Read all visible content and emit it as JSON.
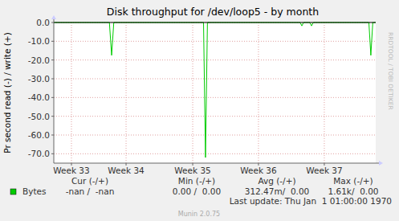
{
  "chart_data": {
    "type": "line",
    "title": "Disk throughput for /dev/loop5 - by month",
    "y_label": "Pr second read (-) / write (+)",
    "side_text": "RRDTOOL / TOBI OETIKER",
    "x": [
      0,
      5.7,
      5.93,
      6.15,
      15.35,
      15.55,
      15.75,
      25.25,
      25.43,
      25.6,
      26.25,
      26.42,
      26.6,
      32.3,
      32.5,
      32.7,
      33
    ],
    "series": [
      {
        "name": "Bytes",
        "color": "#00cc00",
        "values": [
          0,
          0,
          -17.5,
          0,
          0,
          -72,
          0,
          0,
          -1.8,
          0,
          0,
          -1.8,
          0,
          0,
          -17.5,
          0,
          0
        ]
      }
    ],
    "xlim": [
      0,
      33
    ],
    "xticks": [
      {
        "value": 1.81,
        "label": "Week 33"
      },
      {
        "value": 7.41,
        "label": "Week 34"
      },
      {
        "value": 14.24,
        "label": "Week 35"
      },
      {
        "value": 20.98,
        "label": "Week 36"
      },
      {
        "value": 27.73,
        "label": "Week 37"
      }
    ],
    "ylim": [
      -75,
      0
    ],
    "yticks": [
      {
        "value": 0,
        "label": "0.0"
      },
      {
        "value": -10,
        "label": "-10.0"
      },
      {
        "value": -20,
        "label": "-20.0"
      },
      {
        "value": -30,
        "label": "-30.0"
      },
      {
        "value": -40,
        "label": "-40.0"
      },
      {
        "value": -50,
        "label": "-50.0"
      },
      {
        "value": -60,
        "label": "-60.0"
      },
      {
        "value": -70,
        "label": "-70.0"
      }
    ],
    "grid": true,
    "legend_table": {
      "headers": [
        "Cur (-/+)",
        "Min (-/+)",
        "Avg (-/+)",
        "Max (-/+)"
      ],
      "rows": [
        {
          "label": "Bytes",
          "cells": [
            "-nan /  -nan",
            "0.00 /  0.00",
            "312.47m/  0.00",
            "1.61k/  0.00"
          ]
        }
      ]
    },
    "last_update": "Last update: Thu Jan  1 01:00:00 1970",
    "footer": "Munin 2.0.75"
  }
}
